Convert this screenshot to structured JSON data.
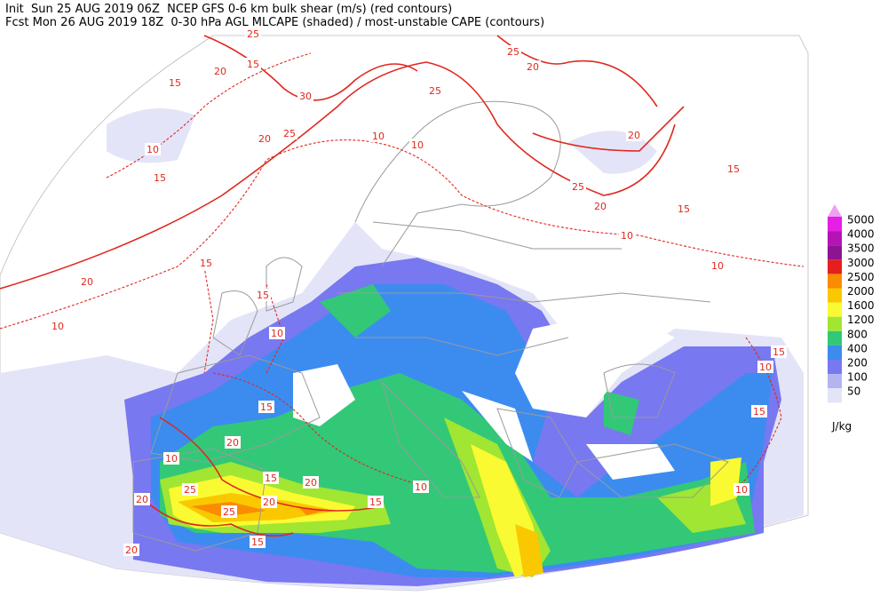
{
  "header": {
    "line1": "Init  Sun 25 AUG 2019 06Z  NCEP GFS 0-6 km bulk shear (m/s) (red contours)",
    "line2": "Fcst Mon 26 AUG 2019 18Z  0-30 hPa AGL MLCAPE (shaded) / most-unstable CAPE (contours)"
  },
  "legend": {
    "levels": [
      5000,
      4000,
      3500,
      3000,
      2500,
      2000,
      1600,
      1200,
      800,
      400,
      200,
      100,
      50
    ],
    "colors": [
      "#e61ee6",
      "#b414b4",
      "#8c1490",
      "#e61e1e",
      "#fa8c00",
      "#fac800",
      "#fafa32",
      "#a0e632",
      "#32c878",
      "#3c8cf0",
      "#7878f0",
      "#b4b4f0",
      "#e4e4f8"
    ],
    "extend_color": "#f0a0f0",
    "unit": "J/kg"
  },
  "contour_labels": [
    25,
    15,
    20,
    15,
    30,
    25,
    25,
    20,
    20,
    10,
    10,
    10,
    25,
    20,
    15,
    25,
    20,
    15,
    15,
    10,
    10,
    20,
    15,
    15,
    10,
    10,
    15,
    10,
    15,
    15,
    20,
    10,
    15,
    20,
    10,
    25,
    20,
    15,
    25,
    20,
    10,
    20,
    15
  ]
}
